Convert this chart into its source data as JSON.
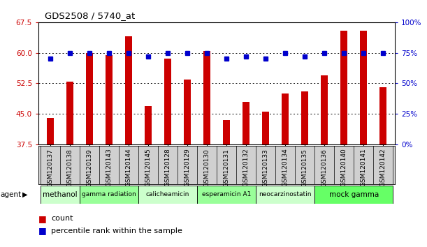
{
  "title": "GDS2508 / 5740_at",
  "samples": [
    "GSM120137",
    "GSM120138",
    "GSM120139",
    "GSM120143",
    "GSM120144",
    "GSM120145",
    "GSM120128",
    "GSM120129",
    "GSM120130",
    "GSM120131",
    "GSM120132",
    "GSM120133",
    "GSM120134",
    "GSM120135",
    "GSM120136",
    "GSM120140",
    "GSM120141",
    "GSM120142"
  ],
  "counts": [
    44.0,
    53.0,
    60.0,
    59.5,
    64.0,
    47.0,
    58.5,
    53.5,
    60.5,
    43.5,
    48.0,
    45.5,
    50.0,
    50.5,
    54.5,
    65.5,
    65.5,
    51.5
  ],
  "percentiles": [
    70,
    75,
    75,
    75,
    75,
    72,
    75,
    75,
    75,
    70,
    72,
    70,
    75,
    72,
    75,
    75,
    75,
    75
  ],
  "agents": [
    {
      "name": "methanol",
      "start": 0,
      "end": 2,
      "color": "#ccffcc"
    },
    {
      "name": "gamma radiation",
      "start": 2,
      "end": 5,
      "color": "#99ff99"
    },
    {
      "name": "calicheamicin",
      "start": 5,
      "end": 8,
      "color": "#ccffcc"
    },
    {
      "name": "esperamicin A1",
      "start": 8,
      "end": 11,
      "color": "#99ff99"
    },
    {
      "name": "neocarzinostatin",
      "start": 11,
      "end": 14,
      "color": "#ccffcc"
    },
    {
      "name": "mock gamma",
      "start": 14,
      "end": 18,
      "color": "#66ff66"
    }
  ],
  "ylim_left": [
    37.5,
    67.5
  ],
  "ylim_right": [
    0,
    100
  ],
  "yticks_left": [
    37.5,
    45.0,
    52.5,
    60.0,
    67.5
  ],
  "yticks_right": [
    0,
    25,
    50,
    75,
    100
  ],
  "bar_color": "#cc0000",
  "dot_color": "#0000cc",
  "sample_bg": "#d0d0d0",
  "bar_width": 0.35
}
